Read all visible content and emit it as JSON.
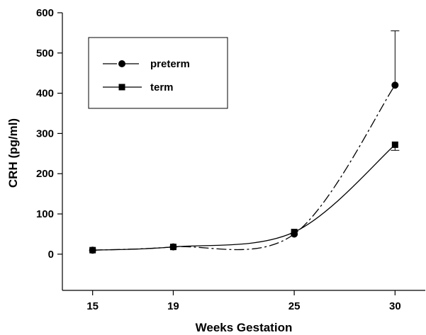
{
  "chart_data": {
    "type": "line",
    "xlabel": "Weeks Gestation",
    "ylabel": "CRH (pg/ml)",
    "x": [
      15,
      19,
      25,
      30
    ],
    "x_ticks": [
      "15",
      "19",
      "25",
      "30"
    ],
    "xlim": [
      13.5,
      31.5
    ],
    "ylim": [
      -90,
      600
    ],
    "y_ticks": [
      0,
      100,
      200,
      300,
      400,
      500,
      600
    ],
    "grid": false,
    "legend_position": "top-left",
    "series": [
      {
        "name": "preterm",
        "marker": "circle",
        "line_style": "dash-dot",
        "values": [
          10,
          18,
          50,
          420
        ],
        "error_upper": [
          null,
          null,
          null,
          555
        ]
      },
      {
        "name": "term",
        "marker": "square",
        "line_style": "solid",
        "values": [
          10,
          18,
          55,
          272
        ],
        "error_lower": [
          null,
          null,
          null,
          258
        ]
      }
    ]
  }
}
